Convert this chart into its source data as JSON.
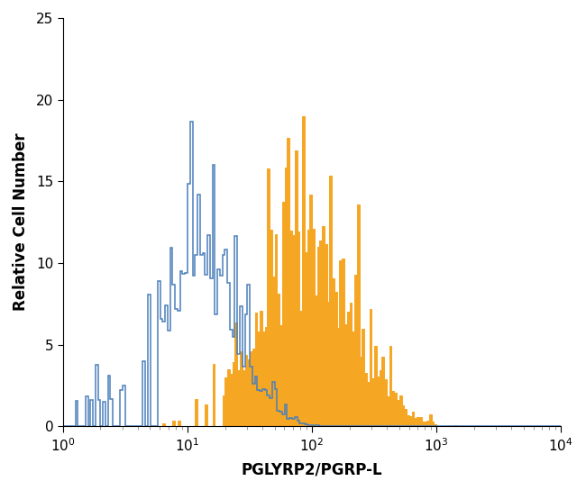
{
  "xlabel": "PGLYRP2/PGRP-L",
  "ylabel": "Relative Cell Number",
  "xlim_log": [
    0,
    4
  ],
  "ylim": [
    0,
    25
  ],
  "yticks": [
    0,
    5,
    10,
    15,
    20,
    25
  ],
  "blue_color": "#4a7fba",
  "orange_color": "#f5a623",
  "blue_linewidth": 1.1,
  "orange_linewidth": 0.7,
  "background_color": "#ffffff",
  "n_bins": 200,
  "blue_seed": 77,
  "orange_seed": 88,
  "blue_log_mean": 1.12,
  "blue_log_std": 0.28,
  "blue_amplitude": 10.0,
  "blue_noise_scale": 1.2,
  "blue_base_mean": 0.2,
  "blue_base_std": 0.5,
  "blue_base_amp": 1.8,
  "orange_log_mean": 1.92,
  "orange_log_std": 0.38,
  "orange_amplitude": 10.5,
  "orange_noise_scale": 1.5,
  "orange_start_log": 1.3
}
